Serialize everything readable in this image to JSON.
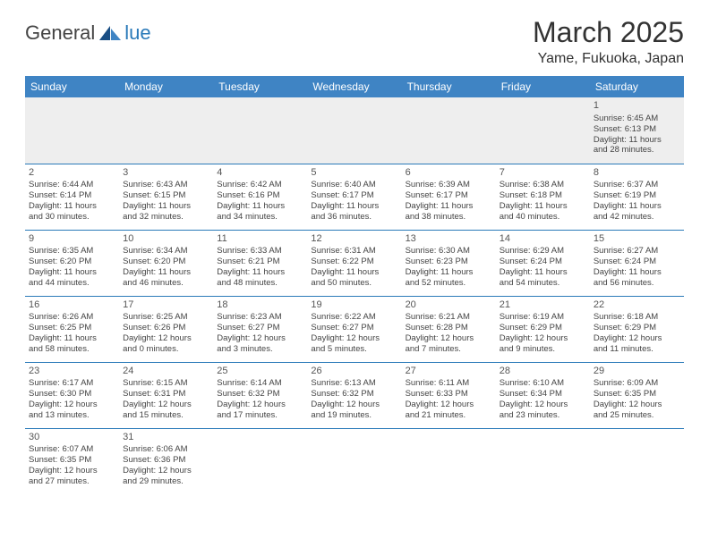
{
  "logo": {
    "part1": "General",
    "part2": "lue"
  },
  "title": "March 2025",
  "location": "Yame, Fukuoka, Japan",
  "colors": {
    "header_bg": "#3f84c4",
    "border": "#2a7ab9",
    "logo_blue": "#2a7ab9",
    "empty_row_bg": "#eeeeee"
  },
  "day_headers": [
    "Sunday",
    "Monday",
    "Tuesday",
    "Wednesday",
    "Thursday",
    "Friday",
    "Saturday"
  ],
  "weeks": [
    [
      null,
      null,
      null,
      null,
      null,
      null,
      {
        "n": "1",
        "sunrise": "6:45 AM",
        "sunset": "6:13 PM",
        "dlh": "11",
        "dlm": "28"
      }
    ],
    [
      {
        "n": "2",
        "sunrise": "6:44 AM",
        "sunset": "6:14 PM",
        "dlh": "11",
        "dlm": "30"
      },
      {
        "n": "3",
        "sunrise": "6:43 AM",
        "sunset": "6:15 PM",
        "dlh": "11",
        "dlm": "32"
      },
      {
        "n": "4",
        "sunrise": "6:42 AM",
        "sunset": "6:16 PM",
        "dlh": "11",
        "dlm": "34"
      },
      {
        "n": "5",
        "sunrise": "6:40 AM",
        "sunset": "6:17 PM",
        "dlh": "11",
        "dlm": "36"
      },
      {
        "n": "6",
        "sunrise": "6:39 AM",
        "sunset": "6:17 PM",
        "dlh": "11",
        "dlm": "38"
      },
      {
        "n": "7",
        "sunrise": "6:38 AM",
        "sunset": "6:18 PM",
        "dlh": "11",
        "dlm": "40"
      },
      {
        "n": "8",
        "sunrise": "6:37 AM",
        "sunset": "6:19 PM",
        "dlh": "11",
        "dlm": "42"
      }
    ],
    [
      {
        "n": "9",
        "sunrise": "6:35 AM",
        "sunset": "6:20 PM",
        "dlh": "11",
        "dlm": "44"
      },
      {
        "n": "10",
        "sunrise": "6:34 AM",
        "sunset": "6:20 PM",
        "dlh": "11",
        "dlm": "46"
      },
      {
        "n": "11",
        "sunrise": "6:33 AM",
        "sunset": "6:21 PM",
        "dlh": "11",
        "dlm": "48"
      },
      {
        "n": "12",
        "sunrise": "6:31 AM",
        "sunset": "6:22 PM",
        "dlh": "11",
        "dlm": "50"
      },
      {
        "n": "13",
        "sunrise": "6:30 AM",
        "sunset": "6:23 PM",
        "dlh": "11",
        "dlm": "52"
      },
      {
        "n": "14",
        "sunrise": "6:29 AM",
        "sunset": "6:24 PM",
        "dlh": "11",
        "dlm": "54"
      },
      {
        "n": "15",
        "sunrise": "6:27 AM",
        "sunset": "6:24 PM",
        "dlh": "11",
        "dlm": "56"
      }
    ],
    [
      {
        "n": "16",
        "sunrise": "6:26 AM",
        "sunset": "6:25 PM",
        "dlh": "11",
        "dlm": "58"
      },
      {
        "n": "17",
        "sunrise": "6:25 AM",
        "sunset": "6:26 PM",
        "dlh": "12",
        "dlm": "0"
      },
      {
        "n": "18",
        "sunrise": "6:23 AM",
        "sunset": "6:27 PM",
        "dlh": "12",
        "dlm": "3"
      },
      {
        "n": "19",
        "sunrise": "6:22 AM",
        "sunset": "6:27 PM",
        "dlh": "12",
        "dlm": "5"
      },
      {
        "n": "20",
        "sunrise": "6:21 AM",
        "sunset": "6:28 PM",
        "dlh": "12",
        "dlm": "7"
      },
      {
        "n": "21",
        "sunrise": "6:19 AM",
        "sunset": "6:29 PM",
        "dlh": "12",
        "dlm": "9"
      },
      {
        "n": "22",
        "sunrise": "6:18 AM",
        "sunset": "6:29 PM",
        "dlh": "12",
        "dlm": "11"
      }
    ],
    [
      {
        "n": "23",
        "sunrise": "6:17 AM",
        "sunset": "6:30 PM",
        "dlh": "12",
        "dlm": "13"
      },
      {
        "n": "24",
        "sunrise": "6:15 AM",
        "sunset": "6:31 PM",
        "dlh": "12",
        "dlm": "15"
      },
      {
        "n": "25",
        "sunrise": "6:14 AM",
        "sunset": "6:32 PM",
        "dlh": "12",
        "dlm": "17"
      },
      {
        "n": "26",
        "sunrise": "6:13 AM",
        "sunset": "6:32 PM",
        "dlh": "12",
        "dlm": "19"
      },
      {
        "n": "27",
        "sunrise": "6:11 AM",
        "sunset": "6:33 PM",
        "dlh": "12",
        "dlm": "21"
      },
      {
        "n": "28",
        "sunrise": "6:10 AM",
        "sunset": "6:34 PM",
        "dlh": "12",
        "dlm": "23"
      },
      {
        "n": "29",
        "sunrise": "6:09 AM",
        "sunset": "6:35 PM",
        "dlh": "12",
        "dlm": "25"
      }
    ],
    [
      {
        "n": "30",
        "sunrise": "6:07 AM",
        "sunset": "6:35 PM",
        "dlh": "12",
        "dlm": "27"
      },
      {
        "n": "31",
        "sunrise": "6:06 AM",
        "sunset": "6:36 PM",
        "dlh": "12",
        "dlm": "29"
      },
      null,
      null,
      null,
      null,
      null
    ]
  ],
  "labels": {
    "sunrise_prefix": "Sunrise: ",
    "sunset_prefix": "Sunset: ",
    "daylight_prefix": "Daylight: ",
    "hours_word": " hours",
    "and_word": "and ",
    "minutes_word": " minutes."
  }
}
